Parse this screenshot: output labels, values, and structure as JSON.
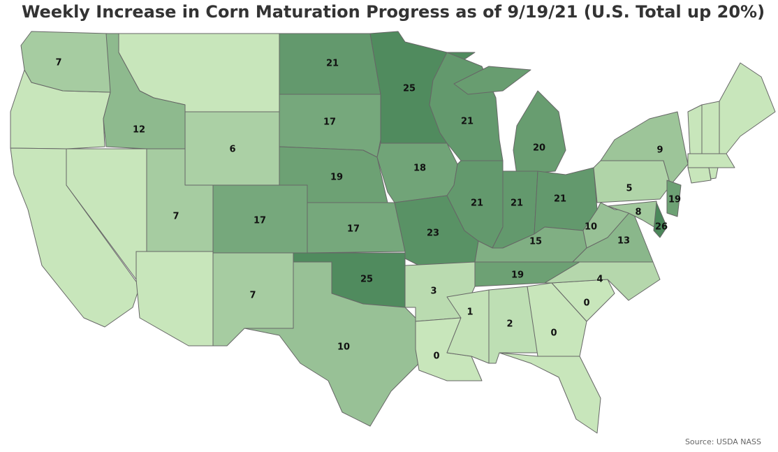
{
  "title": "Weekly Increase in Corn Maturation Progress as of 9/19/21 (U.S. Total up 20%)",
  "source": "Source: USDA NASS",
  "color_scale": [
    "#c8e6bb",
    "#4b875a"
  ],
  "regions": [
    {
      "value": 7
    },
    {
      "value": 12
    },
    {
      "value": 6
    },
    {
      "value": 7
    },
    {
      "value": 17
    },
    {
      "value": 7
    },
    {
      "value": 21
    },
    {
      "value": 17
    },
    {
      "value": 19
    },
    {
      "value": 17
    },
    {
      "value": 25
    },
    {
      "value": 10
    },
    {
      "value": 25
    },
    {
      "value": 18
    },
    {
      "value": 23
    },
    {
      "value": 3
    },
    {
      "value": 0
    },
    {
      "value": 21
    },
    {
      "value": 21
    },
    {
      "value": 20
    },
    {
      "value": 21
    },
    {
      "value": 21
    },
    {
      "value": 15
    },
    {
      "value": 19
    },
    {
      "value": 1
    },
    {
      "value": 2
    },
    {
      "value": 0
    },
    {
      "value": 0
    },
    {
      "value": 4
    },
    {
      "value": 13
    },
    {
      "value": 10
    },
    {
      "value": 5
    },
    {
      "value": 9
    },
    {
      "value": 8
    },
    {
      "value": 19
    },
    {
      "value": 26
    }
  ]
}
